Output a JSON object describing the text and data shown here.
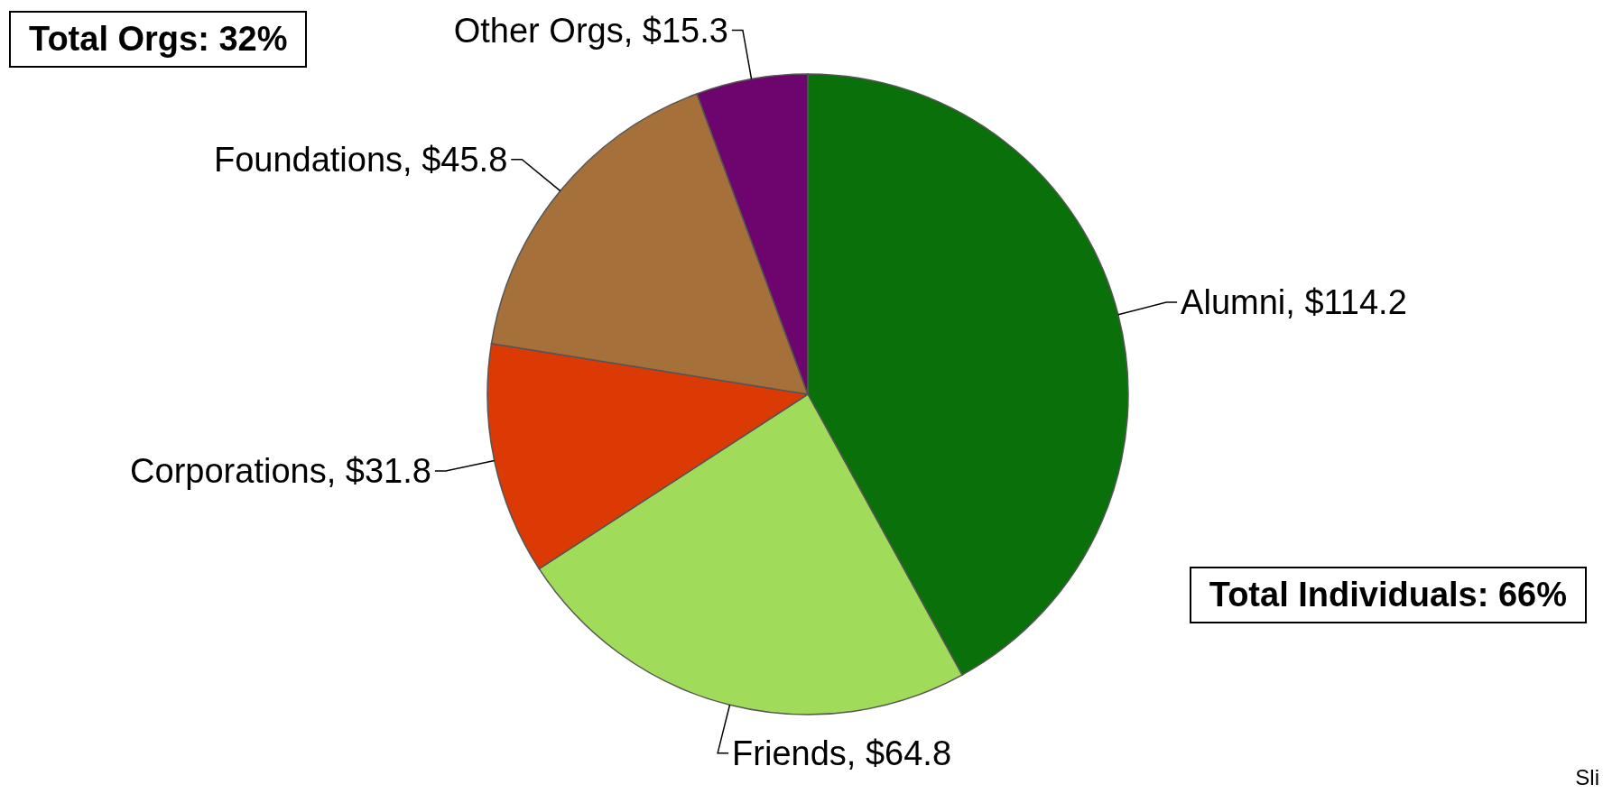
{
  "chart_data": {
    "type": "pie",
    "categories": [
      "Alumni",
      "Friends",
      "Corporations",
      "Foundations",
      "Other Orgs"
    ],
    "values": [
      114.2,
      64.8,
      31.8,
      45.8,
      15.3
    ],
    "colors": [
      "#0a700a",
      "#a0dc5a",
      "#dc3a05",
      "#a5703a",
      "#6e056e"
    ],
    "value_labels": [
      "$114.2",
      "$64.8",
      "$31.8",
      "$45.8",
      "$15.3"
    ],
    "annotations": [
      "Total Orgs: 32%",
      "Total Individuals: 66%",
      "Sli"
    ]
  }
}
